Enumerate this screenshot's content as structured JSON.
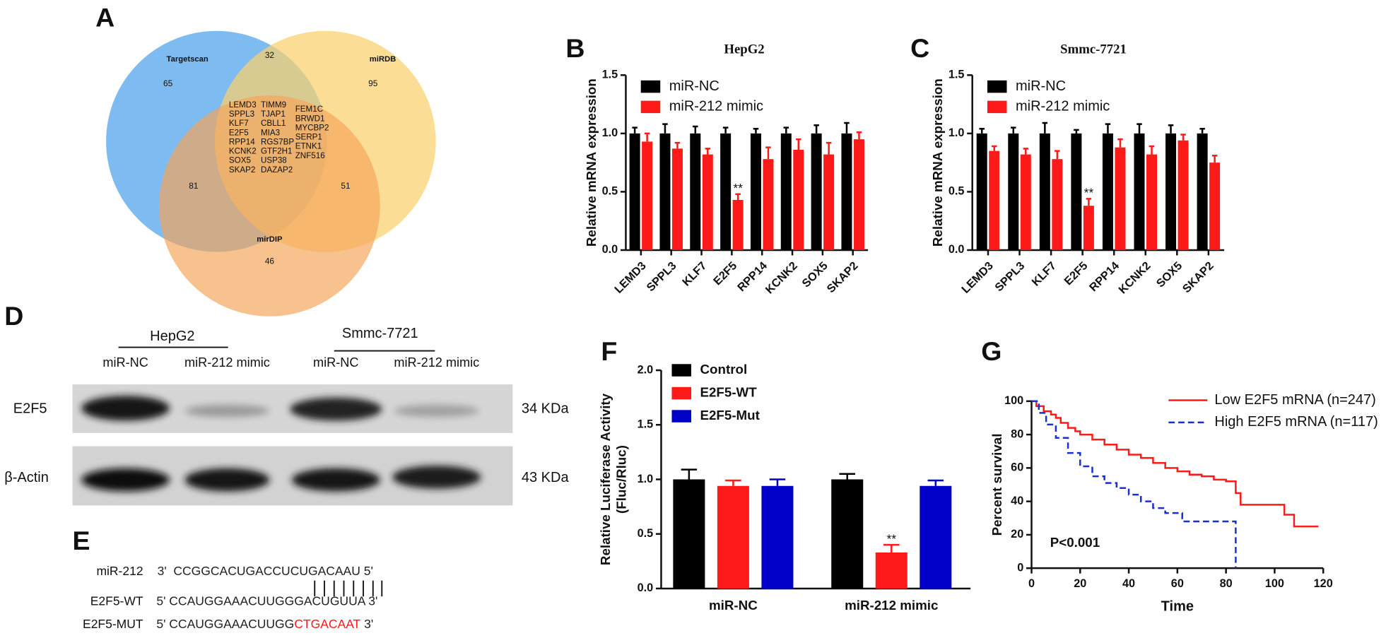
{
  "panel_labels": [
    "A",
    "B",
    "C",
    "D",
    "E",
    "F",
    "G"
  ],
  "venn": {
    "sets": [
      "Targetscan",
      "miRDB",
      "mirDIP"
    ],
    "colors": [
      "#5aa8ec",
      "#f9d06e",
      "#f5a55a"
    ],
    "counts": [
      65,
      32,
      95,
      81,
      51,
      46
    ],
    "genes": [
      [
        "LEMD3",
        "SPPL3",
        "KLF7",
        "E2F5",
        "RPP14",
        "KCNK2",
        "SOX5",
        "SKAP2"
      ],
      [
        "TIMM9",
        "TJAP1",
        "CBLL1",
        "MIA3",
        "RGS7BP",
        "GTF2H1",
        "USP38",
        "DAZAP2"
      ],
      [
        "FEM1C",
        "BRWD1",
        "MYCBP2",
        "SERP1",
        "ETNK1",
        "ZNF516"
      ]
    ]
  },
  "chart_data": [
    {
      "type": "bar",
      "title": "HepG2",
      "ylabel": [
        "Relative mRNA expression"
      ],
      "categories": [
        "LEMD3",
        "SPPL3",
        "KLF7",
        "E2F5",
        "RPP14",
        "KCNK2",
        "SOX5",
        "SKAP2"
      ],
      "series": [
        {
          "name": "miR-NC",
          "color": "#000000",
          "values": [
            1.0,
            1.0,
            1.0,
            1.0,
            1.0,
            1.0,
            1.0,
            1.0
          ],
          "errors": [
            0.05,
            0.08,
            0.06,
            0.05,
            0.04,
            0.05,
            0.07,
            0.09
          ]
        },
        {
          "name": "miR-212 mimic",
          "color": "#ff1a1a",
          "values": [
            0.93,
            0.87,
            0.82,
            0.43,
            0.78,
            0.86,
            0.82,
            0.95
          ],
          "errors": [
            0.07,
            0.05,
            0.05,
            0.05,
            0.1,
            0.09,
            0.1,
            0.06
          ],
          "annotations": [
            null,
            null,
            null,
            "**",
            null,
            null,
            null,
            null
          ]
        }
      ],
      "ylim": [
        0,
        1.5
      ],
      "yticks": [
        {
          "value": 0,
          "label": "0.0"
        },
        0.5,
        {
          "value": 1,
          "label": "1.0"
        },
        1.5
      ]
    },
    {
      "type": "bar",
      "title": "Smmc-7721",
      "ylabel": [
        "Relative mRNA expression"
      ],
      "categories": [
        "LEMD3",
        "SPPL3",
        "KLF7",
        "E2F5",
        "RPP14",
        "KCNK2",
        "SOX5",
        "SKAP2"
      ],
      "series": [
        {
          "name": "miR-NC",
          "color": "#000000",
          "values": [
            1.0,
            1.0,
            1.0,
            1.0,
            1.0,
            1.0,
            1.0,
            1.0
          ],
          "errors": [
            0.04,
            0.05,
            0.09,
            0.03,
            0.08,
            0.08,
            0.07,
            0.04
          ]
        },
        {
          "name": "miR-212 mimic",
          "color": "#ff1a1a",
          "values": [
            0.85,
            0.82,
            0.78,
            0.38,
            0.88,
            0.82,
            0.94,
            0.75
          ],
          "errors": [
            0.04,
            0.05,
            0.07,
            0.06,
            0.07,
            0.07,
            0.05,
            0.06
          ],
          "annotations": [
            null,
            null,
            null,
            "**",
            null,
            null,
            null,
            null
          ]
        }
      ],
      "ylim": [
        0,
        1.5
      ],
      "yticks": [
        {
          "value": 0,
          "label": "0.0"
        },
        0.5,
        {
          "value": 1,
          "label": "1.0"
        },
        1.5
      ]
    },
    {
      "type": "bar",
      "ylabel": [
        "Relative Luciferase Activity",
        "(Fluc/Rluc)"
      ],
      "categories": [
        "miR-NC",
        "miR-212 mimic"
      ],
      "series": [
        {
          "name": "Control",
          "color": "#000000",
          "values": [
            1.0,
            1.0
          ],
          "errors": [
            0.09,
            0.05
          ]
        },
        {
          "name": "E2F5-WT",
          "color": "#ff1a1a",
          "values": [
            0.94,
            0.33
          ],
          "errors": [
            0.05,
            0.07
          ],
          "annotations": [
            null,
            "**"
          ]
        },
        {
          "name": "E2F5-Mut",
          "color": "#0000c8",
          "values": [
            0.94,
            0.94
          ],
          "errors": [
            0.06,
            0.05
          ]
        }
      ],
      "ylim": [
        0,
        2.0
      ],
      "yticks": [
        {
          "value": 0,
          "label": "0.0"
        },
        0.5,
        {
          "value": 1,
          "label": "1.0"
        },
        1.5,
        {
          "value": 2,
          "label": "2.0"
        }
      ]
    },
    {
      "type": "line",
      "xlabel": "Time",
      "ylabel": [
        "Percent survival"
      ],
      "annotation": "P<0.001",
      "series": [
        {
          "name": "Low E2F5 mRNA (n=247)",
          "color": "#ff1a1a",
          "dash": false,
          "x": [
            0,
            2,
            5,
            8,
            10,
            12,
            15,
            18,
            20,
            25,
            30,
            35,
            40,
            45,
            50,
            55,
            60,
            65,
            70,
            75,
            80,
            84,
            86,
            104,
            108,
            118
          ],
          "values": [
            100,
            97,
            94,
            92,
            90,
            87,
            84,
            82,
            80,
            77,
            74,
            71,
            68,
            66,
            63,
            60,
            58,
            56,
            55,
            53,
            52,
            45,
            38,
            32,
            25,
            25
          ]
        },
        {
          "name": "High E2F5 mRNA (n=117)",
          "color": "#1a2fd0",
          "dash": true,
          "x": [
            0,
            3,
            6,
            10,
            15,
            20,
            25,
            30,
            35,
            40,
            45,
            50,
            55,
            62,
            84
          ],
          "values": [
            100,
            93,
            86,
            78,
            69,
            61,
            55,
            51,
            48,
            44,
            40,
            36,
            33,
            28,
            0
          ]
        }
      ],
      "xlim": [
        0,
        120
      ],
      "xticks": [
        0,
        20,
        40,
        60,
        80,
        100,
        120
      ],
      "ylim": [
        0,
        100
      ],
      "yticks": [
        0,
        20,
        40,
        60,
        80,
        100
      ]
    }
  ],
  "blot": {
    "groups": [
      "HepG2",
      "Smmc-7721"
    ],
    "lanes": [
      "miR-NC",
      "miR-212 mimic",
      "miR-NC",
      "miR-212 mimic"
    ],
    "rows": [
      "E2F5",
      "β-Actin"
    ],
    "sizes": [
      "34 KDa",
      "43 KDa"
    ]
  },
  "sequences": [
    {
      "label": "miR-212",
      "parts": [
        {
          "text": "3'  CCGGCACUGACCUCUGACAAU 5'",
          "color": "#222222"
        }
      ]
    },
    {
      "label": "E2F5-WT",
      "parts": [
        {
          "text": "5' CCAUGGAAACUUGGGACUGUUA 3'",
          "color": "#222222"
        }
      ]
    },
    {
      "label": "E2F5-MUT",
      "parts": [
        {
          "text": "5' CCAUGGAAACUUGG",
          "color": "#222222"
        },
        {
          "text": "CTGACAAT",
          "color": "#ff1a1a"
        },
        {
          "text": " 3'",
          "color": "#222222"
        }
      ]
    }
  ]
}
